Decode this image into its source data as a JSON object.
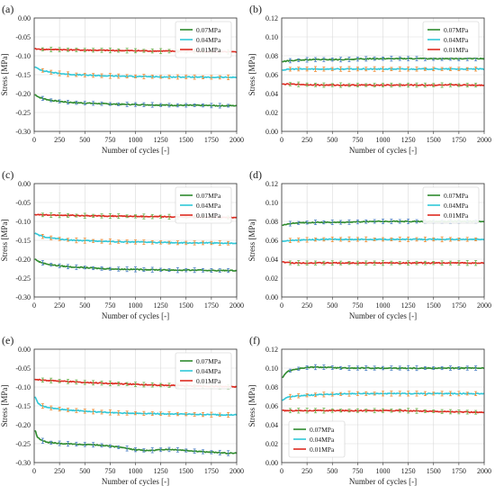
{
  "chart_data": [
    {
      "panel": "(a)",
      "type": "line",
      "xlabel": "Number of cycles [-]",
      "ylabel": "Stress [MPa]",
      "xlim": [
        0,
        2000
      ],
      "ylim": [
        -0.3,
        0.0
      ],
      "xticks": [
        0,
        250,
        500,
        750,
        1000,
        1250,
        1500,
        1750,
        2000
      ],
      "yticks": [
        -0.3,
        -0.25,
        -0.2,
        -0.15,
        -0.1,
        -0.05,
        0.0
      ],
      "grid": true,
      "legend_position": "top-right",
      "series": [
        {
          "name": "0.07MPa",
          "color": "#2e8b2e",
          "errcolor": "#4a7fc4",
          "x": [
            10,
            50,
            100,
            150,
            200,
            300,
            400,
            500,
            600,
            700,
            800,
            1000,
            1200,
            1400,
            1600,
            1800,
            2000
          ],
          "y": [
            -0.203,
            -0.21,
            -0.214,
            -0.217,
            -0.219,
            -0.222,
            -0.224,
            -0.225,
            -0.226,
            -0.227,
            -0.228,
            -0.229,
            -0.23,
            -0.231,
            -0.231,
            -0.232,
            -0.232
          ]
        },
        {
          "name": "0.04MPa",
          "color": "#30c8d8",
          "errcolor": "#f08a30",
          "x": [
            10,
            50,
            100,
            200,
            300,
            400,
            500,
            700,
            900,
            1100,
            1300,
            1500,
            1700,
            2000
          ],
          "y": [
            -0.13,
            -0.136,
            -0.14,
            -0.145,
            -0.148,
            -0.15,
            -0.151,
            -0.153,
            -0.154,
            -0.155,
            -0.156,
            -0.156,
            -0.157,
            -0.157
          ]
        },
        {
          "name": "0.01MPa",
          "color": "#dd2a1f",
          "errcolor": "#6ab04c",
          "x": [
            10,
            100,
            300,
            500,
            800,
            1100,
            1400,
            1700,
            2000
          ],
          "y": [
            -0.082,
            -0.083,
            -0.084,
            -0.085,
            -0.086,
            -0.087,
            -0.088,
            -0.089,
            -0.09
          ]
        }
      ]
    },
    {
      "panel": "(b)",
      "type": "line",
      "xlabel": "Number of cycles [-]",
      "ylabel": "Stress [MPa]",
      "xlim": [
        0,
        2000
      ],
      "ylim": [
        0.0,
        0.12
      ],
      "xticks": [
        0,
        250,
        500,
        750,
        1000,
        1250,
        1500,
        1750,
        2000
      ],
      "yticks": [
        0.0,
        0.02,
        0.04,
        0.06,
        0.08,
        0.1,
        0.12
      ],
      "grid": true,
      "legend_position": "top-right",
      "series": [
        {
          "name": "0.07MPa",
          "color": "#2e8b2e",
          "errcolor": "#4a7fc4",
          "x": [
            10,
            100,
            300,
            600,
            900,
            1200,
            1500,
            1800,
            2000
          ],
          "y": [
            0.074,
            0.075,
            0.076,
            0.076,
            0.077,
            0.077,
            0.077,
            0.077,
            0.077
          ]
        },
        {
          "name": "0.04MPa",
          "color": "#30c8d8",
          "errcolor": "#f08a30",
          "x": [
            10,
            100,
            400,
            800,
            1200,
            1600,
            2000
          ],
          "y": [
            0.065,
            0.066,
            0.066,
            0.066,
            0.066,
            0.066,
            0.066
          ]
        },
        {
          "name": "0.01MPa",
          "color": "#dd2a1f",
          "errcolor": "#6ab04c",
          "x": [
            10,
            100,
            400,
            800,
            1200,
            1600,
            2000
          ],
          "y": [
            0.05,
            0.05,
            0.049,
            0.049,
            0.049,
            0.049,
            0.049
          ]
        }
      ]
    },
    {
      "panel": "(c)",
      "type": "line",
      "xlabel": "Number of cycles [-]",
      "ylabel": "Stress [MPa]",
      "xlim": [
        0,
        2000
      ],
      "ylim": [
        -0.3,
        0.0
      ],
      "xticks": [
        0,
        250,
        500,
        750,
        1000,
        1250,
        1500,
        1750,
        2000
      ],
      "yticks": [
        -0.3,
        -0.25,
        -0.2,
        -0.15,
        -0.1,
        -0.05,
        0.0
      ],
      "grid": true,
      "legend_position": "top-right",
      "series": [
        {
          "name": "0.07MPa",
          "color": "#2e8b2e",
          "errcolor": "#4a7fc4",
          "x": [
            10,
            50,
            100,
            150,
            200,
            300,
            400,
            500,
            600,
            700,
            800,
            1000,
            1200,
            1400,
            1600,
            1800,
            2000
          ],
          "y": [
            -0.2,
            -0.207,
            -0.211,
            -0.214,
            -0.216,
            -0.219,
            -0.221,
            -0.222,
            -0.224,
            -0.225,
            -0.226,
            -0.227,
            -0.228,
            -0.229,
            -0.229,
            -0.23,
            -0.23
          ]
        },
        {
          "name": "0.04MPa",
          "color": "#30c8d8",
          "errcolor": "#f08a30",
          "x": [
            10,
            50,
            100,
            200,
            300,
            400,
            500,
            700,
            900,
            1100,
            1300,
            1500,
            1700,
            2000
          ],
          "y": [
            -0.132,
            -0.137,
            -0.141,
            -0.145,
            -0.148,
            -0.15,
            -0.151,
            -0.153,
            -0.154,
            -0.155,
            -0.156,
            -0.157,
            -0.157,
            -0.158
          ]
        },
        {
          "name": "0.01MPa",
          "color": "#dd2a1f",
          "errcolor": "#6ab04c",
          "x": [
            10,
            100,
            300,
            500,
            800,
            1100,
            1400,
            1700,
            2000
          ],
          "y": [
            -0.082,
            -0.083,
            -0.084,
            -0.085,
            -0.086,
            -0.087,
            -0.088,
            -0.089,
            -0.09
          ]
        }
      ]
    },
    {
      "panel": "(d)",
      "type": "line",
      "xlabel": "Number of cycles [-]",
      "ylabel": "Stress [MPa]",
      "xlim": [
        0,
        2000
      ],
      "ylim": [
        0.0,
        0.12
      ],
      "xticks": [
        0,
        250,
        500,
        750,
        1000,
        1250,
        1500,
        1750,
        2000
      ],
      "yticks": [
        0.0,
        0.02,
        0.04,
        0.06,
        0.08,
        0.1,
        0.12
      ],
      "grid": true,
      "legend_position": "top-right",
      "series": [
        {
          "name": "0.07MPa",
          "color": "#2e8b2e",
          "errcolor": "#4a7fc4",
          "x": [
            10,
            100,
            300,
            600,
            900,
            1200,
            1500,
            1800,
            2000
          ],
          "y": [
            0.076,
            0.078,
            0.079,
            0.079,
            0.08,
            0.08,
            0.08,
            0.08,
            0.08
          ]
        },
        {
          "name": "0.04MPa",
          "color": "#30c8d8",
          "errcolor": "#f08a30",
          "x": [
            10,
            100,
            400,
            800,
            1200,
            1600,
            2000
          ],
          "y": [
            0.059,
            0.06,
            0.061,
            0.061,
            0.061,
            0.061,
            0.061
          ]
        },
        {
          "name": "0.01MPa",
          "color": "#dd2a1f",
          "errcolor": "#6ab04c",
          "x": [
            10,
            100,
            400,
            800,
            1200,
            1600,
            2000
          ],
          "y": [
            0.037,
            0.036,
            0.036,
            0.036,
            0.036,
            0.036,
            0.036
          ]
        }
      ]
    },
    {
      "panel": "(e)",
      "type": "line",
      "xlabel": "Number of cycles [-]",
      "ylabel": "Stress [MPa]",
      "xlim": [
        0,
        2000
      ],
      "ylim": [
        -0.3,
        0.0
      ],
      "xticks": [
        0,
        250,
        500,
        750,
        1000,
        1250,
        1500,
        1750,
        2000
      ],
      "yticks": [
        -0.3,
        -0.25,
        -0.2,
        -0.15,
        -0.1,
        -0.05,
        0.0
      ],
      "grid": true,
      "legend_position": "top-right",
      "series": [
        {
          "name": "0.07MPa",
          "color": "#2e8b2e",
          "errcolor": "#4a7fc4",
          "x": [
            10,
            30,
            60,
            100,
            150,
            200,
            300,
            400,
            500,
            600,
            700,
            800,
            900,
            1000,
            1100,
            1200,
            1300,
            1400,
            1500,
            1600,
            1700,
            1800,
            1900,
            2000
          ],
          "y": [
            -0.215,
            -0.232,
            -0.24,
            -0.244,
            -0.247,
            -0.248,
            -0.25,
            -0.251,
            -0.252,
            -0.253,
            -0.255,
            -0.258,
            -0.262,
            -0.266,
            -0.268,
            -0.267,
            -0.265,
            -0.266,
            -0.268,
            -0.27,
            -0.272,
            -0.273,
            -0.275,
            -0.275
          ]
        },
        {
          "name": "0.04MPa",
          "color": "#30c8d8",
          "errcolor": "#f08a30",
          "x": [
            10,
            30,
            60,
            100,
            200,
            300,
            400,
            500,
            700,
            900,
            1100,
            1300,
            1500,
            1700,
            2000
          ],
          "y": [
            -0.125,
            -0.14,
            -0.148,
            -0.152,
            -0.157,
            -0.16,
            -0.162,
            -0.164,
            -0.167,
            -0.169,
            -0.17,
            -0.171,
            -0.172,
            -0.173,
            -0.174
          ]
        },
        {
          "name": "0.01MPa",
          "color": "#dd2a1f",
          "errcolor": "#6ab04c",
          "x": [
            10,
            100,
            300,
            500,
            800,
            1100,
            1400,
            1700,
            2000
          ],
          "y": [
            -0.08,
            -0.082,
            -0.085,
            -0.088,
            -0.091,
            -0.094,
            -0.096,
            -0.098,
            -0.1
          ]
        }
      ]
    },
    {
      "panel": "(f)",
      "type": "line",
      "xlabel": "Number of cycles [-]",
      "ylabel": "Stress [MPa]",
      "xlim": [
        0,
        2000
      ],
      "ylim": [
        0.0,
        0.12
      ],
      "xticks": [
        0,
        250,
        500,
        750,
        1000,
        1250,
        1500,
        1750,
        2000
      ],
      "yticks": [
        0.0,
        0.02,
        0.04,
        0.06,
        0.08,
        0.1,
        0.12
      ],
      "grid": true,
      "legend_position": "bottom-left",
      "series": [
        {
          "name": "0.07MPa",
          "color": "#2e8b2e",
          "errcolor": "#4a7fc4",
          "x": [
            10,
            50,
            100,
            200,
            300,
            400,
            600,
            800,
            1000,
            1200,
            1400,
            1600,
            1800,
            2000
          ],
          "y": [
            0.09,
            0.096,
            0.098,
            0.1,
            0.101,
            0.101,
            0.1,
            0.1,
            0.1,
            0.1,
            0.1,
            0.1,
            0.1,
            0.1
          ]
        },
        {
          "name": "0.04MPa",
          "color": "#30c8d8",
          "errcolor": "#f08a30",
          "x": [
            10,
            50,
            100,
            200,
            400,
            700,
            1000,
            1300,
            1600,
            2000
          ],
          "y": [
            0.066,
            0.069,
            0.07,
            0.071,
            0.072,
            0.073,
            0.073,
            0.073,
            0.073,
            0.073
          ]
        },
        {
          "name": "0.01MPa",
          "color": "#dd2a1f",
          "errcolor": "#6ab04c",
          "x": [
            10,
            100,
            400,
            800,
            1200,
            1600,
            2000
          ],
          "y": [
            0.055,
            0.055,
            0.055,
            0.055,
            0.055,
            0.054,
            0.053
          ]
        }
      ]
    }
  ]
}
